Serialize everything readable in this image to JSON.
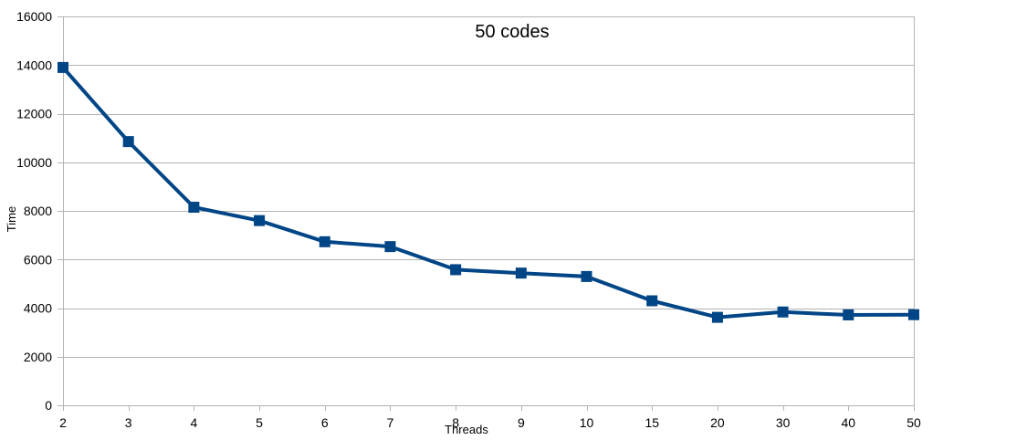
{
  "chart_data": {
    "type": "line",
    "title": "50 codes",
    "xlabel": "Threads",
    "ylabel": "Time",
    "categories": [
      "2",
      "3",
      "4",
      "5",
      "6",
      "7",
      "8",
      "9",
      "10",
      "15",
      "20",
      "30",
      "40",
      "50"
    ],
    "series": [
      {
        "values": [
          13900,
          10850,
          8150,
          7600,
          6730,
          6530,
          5580,
          5440,
          5300,
          4300,
          3620,
          3840,
          3720,
          3730
        ],
        "color": "#004586",
        "marker": "square"
      }
    ],
    "ylim": [
      0,
      16000
    ],
    "yticks": [
      0,
      2000,
      4000,
      6000,
      8000,
      10000,
      12000,
      14000,
      16000
    ],
    "grid": true,
    "legend": "none"
  },
  "colors": {
    "series": "#004586",
    "gridline": "#b3b3b3",
    "axis": "#b3b3b3"
  }
}
